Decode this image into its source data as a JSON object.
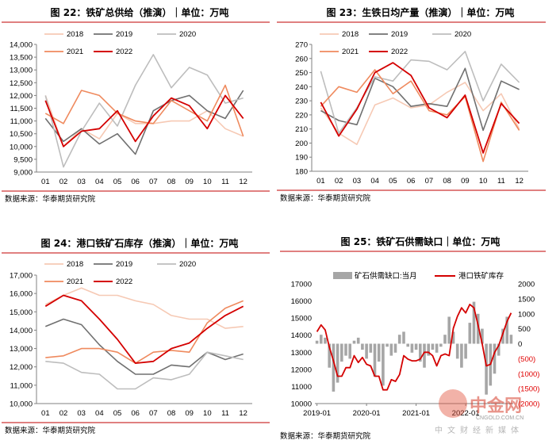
{
  "chart_data": [
    {
      "type": "line",
      "title": "图 22：铁矿总供给（推演）｜单位：万吨",
      "source": "数据来源：华泰期货研究院",
      "categories": [
        "01",
        "02",
        "03",
        "04",
        "05",
        "06",
        "07",
        "08",
        "09",
        "10",
        "11",
        "12"
      ],
      "ylim": [
        9000,
        14000
      ],
      "yticks": [
        "9,000",
        "9,500",
        "10,000",
        "10,500",
        "11,000",
        "11,500",
        "12,000",
        "12,500",
        "13,000",
        "13,500",
        "14,000"
      ],
      "legend_placement": "top",
      "series": [
        {
          "name": "2018",
          "color": "#f6c9b4",
          "values": [
            12000,
            10000,
            10700,
            10300,
            11300,
            10900,
            10900,
            11000,
            11000,
            11400,
            10700,
            10400
          ]
        },
        {
          "name": "2019",
          "color": "#707070",
          "values": [
            11100,
            10200,
            10700,
            10100,
            10500,
            9700,
            11400,
            11800,
            12000,
            11400,
            11100,
            12200
          ]
        },
        {
          "name": "2020",
          "color": "#bdbdbd",
          "values": [
            12000,
            9200,
            10600,
            11700,
            10800,
            12400,
            13600,
            12300,
            13100,
            12800,
            11700,
            11900
          ]
        },
        {
          "name": "2021",
          "color": "#ef8a5e",
          "values": [
            11300,
            10900,
            12200,
            12000,
            11300,
            11000,
            10900,
            11800,
            11400,
            11000,
            12400,
            10400
          ]
        },
        {
          "name": "2022",
          "color": "#d40000",
          "values": [
            11800,
            10000,
            10600,
            10700,
            11400,
            10200,
            11200,
            11900,
            11600,
            10700,
            12000,
            11100
          ]
        }
      ]
    },
    {
      "type": "line",
      "title": "图 23：生铁日均产量（推演）｜单位：万吨",
      "source": "数据来源：华泰期货研究院",
      "categories": [
        "01",
        "02",
        "03",
        "04",
        "05",
        "06",
        "07",
        "08",
        "09",
        "10",
        "11",
        "12"
      ],
      "ylim": [
        180,
        270
      ],
      "yticks": [
        "180",
        "190",
        "200",
        "210",
        "220",
        "230",
        "240",
        "250",
        "260",
        "270"
      ],
      "legend_placement": "top",
      "series": [
        {
          "name": "2018",
          "color": "#f6c9b4",
          "values": [
            225,
            207,
            199,
            227,
            232,
            225,
            227,
            236,
            243,
            223,
            235,
            210
          ]
        },
        {
          "name": "2019",
          "color": "#707070",
          "values": [
            223,
            216,
            213,
            246,
            240,
            226,
            228,
            226,
            253,
            209,
            244,
            238
          ]
        },
        {
          "name": "2020",
          "color": "#bdbdbd",
          "values": [
            251,
            207,
            225,
            247,
            244,
            259,
            258,
            252,
            265,
            230,
            256,
            243
          ]
        },
        {
          "name": "2021",
          "color": "#ef8a5e",
          "values": [
            226,
            240,
            236,
            252,
            235,
            244,
            223,
            220,
            233,
            187,
            229,
            209
          ]
        },
        {
          "name": "2022",
          "color": "#d40000",
          "values": [
            229,
            205,
            224,
            250,
            257,
            248,
            225,
            218,
            234,
            193,
            228,
            214
          ]
        }
      ]
    },
    {
      "type": "line",
      "title": "图 24：港口铁矿石库存（推演）｜单位：万吨",
      "source": "数据来源：华泰期货研究院",
      "categories": [
        "01",
        "02",
        "03",
        "04",
        "05",
        "06",
        "07",
        "08",
        "09",
        "10",
        "11",
        "12"
      ],
      "ylim": [
        10000,
        17000
      ],
      "yticks": [
        "10,000",
        "11,000",
        "12,000",
        "13,000",
        "14,000",
        "15,000",
        "16,000",
        "17,000"
      ],
      "legend_placement": "top",
      "series": [
        {
          "name": "2018",
          "color": "#f6c9b4",
          "values": [
            15400,
            15900,
            16300,
            15900,
            15900,
            15600,
            15400,
            14800,
            14600,
            14600,
            14100,
            14200
          ]
        },
        {
          "name": "2019",
          "color": "#707070",
          "values": [
            14200,
            14600,
            14300,
            13200,
            12300,
            11600,
            11600,
            12100,
            12000,
            12800,
            12400,
            12700
          ]
        },
        {
          "name": "2020",
          "color": "#bdbdbd",
          "values": [
            12300,
            12200,
            11700,
            11600,
            10800,
            10800,
            11400,
            11300,
            11600,
            12800,
            12600,
            12400
          ]
        },
        {
          "name": "2021",
          "color": "#ef8a5e",
          "values": [
            12500,
            12600,
            13000,
            13000,
            12800,
            12200,
            12800,
            12900,
            12800,
            14400,
            15200,
            15600
          ]
        },
        {
          "name": "2022",
          "color": "#d40000",
          "values": [
            15300,
            15900,
            15600,
            14600,
            13500,
            12200,
            12300,
            13000,
            13300,
            14100,
            14800,
            15300
          ]
        }
      ]
    },
    {
      "type": "bar",
      "title": "图 25：铁矿石供需缺口｜单位：万吨",
      "source": "数据来源：华泰期货研究院",
      "xticks": [
        "2019-01",
        "2020-01",
        "2021-01",
        "2022-01"
      ],
      "ylim_left": [
        10000,
        17000
      ],
      "yticks_left": [
        "10000",
        "11000",
        "12000",
        "13000",
        "14000",
        "15000",
        "16000",
        "17000"
      ],
      "ylim_right": [
        -2000,
        2000
      ],
      "yticks_right": [
        "(2000)",
        "(1500)",
        "(1000)",
        "(500)",
        "0",
        "500",
        "1000",
        "1500",
        "2000"
      ],
      "legend_placement": "top",
      "series": [
        {
          "name": "矿石供需缺口:当月",
          "axis": "right",
          "kind": "bar",
          "color": "#a6a6a6",
          "values": [
            100,
            300,
            200,
            -800,
            -1600,
            -1300,
            -600,
            -400,
            -500,
            100,
            200,
            -200,
            -500,
            -300,
            -1100,
            -600,
            -1400,
            -100,
            -400,
            -300,
            300,
            400,
            -100,
            -300,
            -200,
            -600,
            -800,
            -400,
            -200,
            -300,
            -100,
            300,
            900,
            400,
            -500,
            -800,
            -500,
            700,
            1400,
            1000,
            500,
            -1700,
            -1400,
            -1000,
            -400,
            500,
            900,
            300
          ]
        },
        {
          "name": "港口铁矿库存",
          "axis": "left",
          "kind": "line",
          "color": "#d40000",
          "values": [
            14200,
            14600,
            14300,
            13300,
            12500,
            11600,
            11600,
            12100,
            12100,
            12800,
            12400,
            12700,
            12300,
            12200,
            11600,
            11600,
            10800,
            10800,
            11400,
            11300,
            11700,
            12800,
            12600,
            12500,
            12500,
            12600,
            13000,
            13000,
            12800,
            12200,
            12800,
            12900,
            12800,
            14400,
            15100,
            15600,
            15300,
            15800,
            15600,
            14600,
            13500,
            12200,
            12300,
            13000,
            13400,
            14100,
            14800,
            15300
          ]
        }
      ]
    }
  ],
  "watermark": {
    "main": "中金网",
    "sub": "CNGOLD.COM.CN",
    "tagline": "中文财经新媒体"
  }
}
